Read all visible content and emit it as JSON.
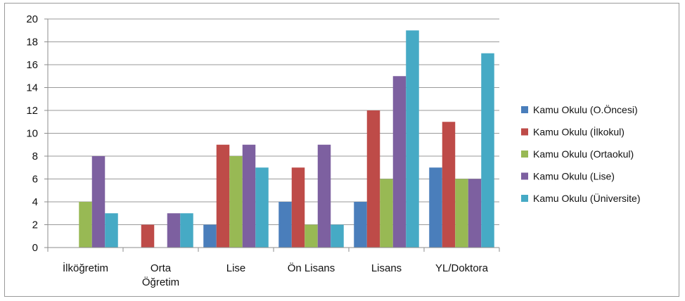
{
  "chart_data": {
    "type": "bar",
    "categories": [
      [
        "İlköğretim"
      ],
      [
        "Orta",
        "Öğretim"
      ],
      [
        "Lise"
      ],
      [
        "Ön Lisans"
      ],
      [
        "Lisans"
      ],
      [
        "YL/Doktora"
      ]
    ],
    "series": [
      {
        "name": "Kamu Okulu (O.Öncesi)",
        "color": "#4a7ebb",
        "values": [
          0,
          0,
          2,
          4,
          4,
          7
        ]
      },
      {
        "name": "Kamu Okulu (İlkokul)",
        "color": "#be4b48",
        "values": [
          0,
          2,
          9,
          7,
          12,
          11
        ]
      },
      {
        "name": "Kamu Okulu (Ortaokul)",
        "color": "#98b954",
        "values": [
          4,
          0,
          8,
          2,
          6,
          6
        ]
      },
      {
        "name": "Kamu Okulu (Lise)",
        "color": "#7d60a0",
        "values": [
          8,
          3,
          9,
          9,
          15,
          6
        ]
      },
      {
        "name": "Kamu Okulu (Üniversite)",
        "color": "#46aac5",
        "values": [
          3,
          3,
          7,
          2,
          19,
          17
        ]
      }
    ],
    "yticks": [
      "0",
      "2",
      "4",
      "6",
      "8",
      "10",
      "12",
      "14",
      "16",
      "18",
      "20"
    ],
    "ylim": [
      0,
      20
    ],
    "grid": true,
    "legend_position": "right",
    "title": "",
    "xlabel": "",
    "ylabel": ""
  }
}
